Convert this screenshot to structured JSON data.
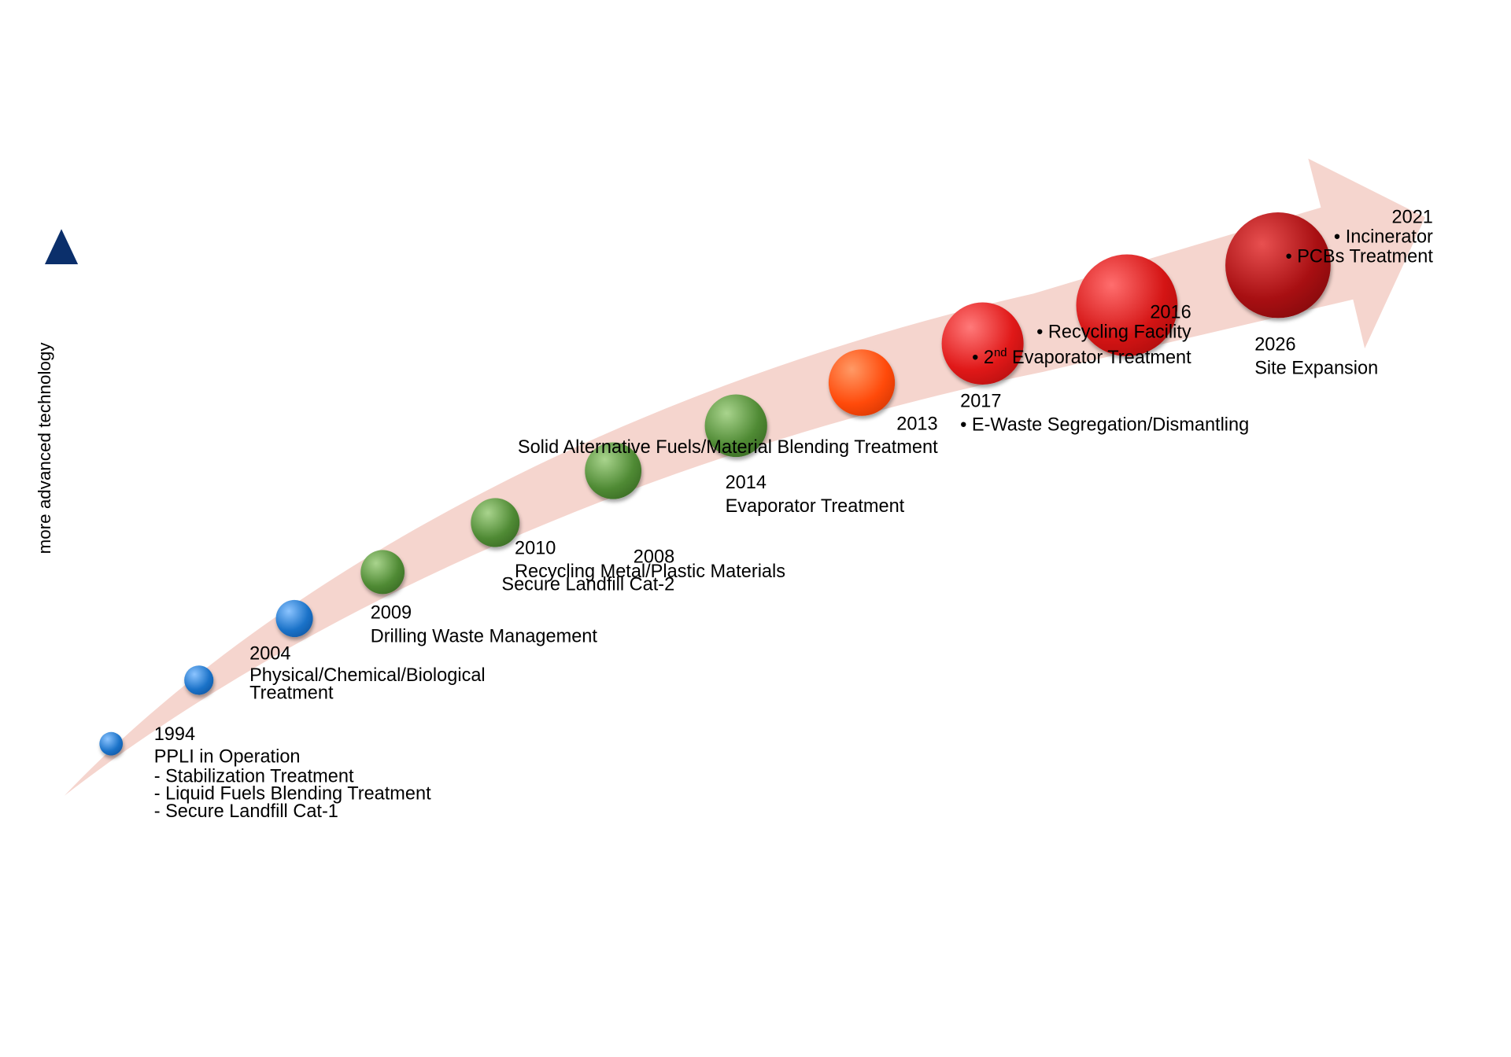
{
  "axis_label": "more advanced technology",
  "colors": {
    "band": "#f5d5ce",
    "arrow": "#0b2f6b",
    "blue": "#1a72c8",
    "green": "#4f8a34",
    "orange": "#ff4a0a",
    "red": "#e01818",
    "dark_red": "#a80f12"
  },
  "milestones": [
    {
      "year": "1994",
      "title": "PPLI in Operation",
      "items": [
        "- Stabilization Treatment",
        "- Liquid Fuels Blending Treatment",
        "- Secure Landfill Cat-1"
      ],
      "color": "blue"
    },
    {
      "year": "2004",
      "title": "Physical/Chemical/Biological",
      "items": [
        "Treatment"
      ],
      "color": "blue"
    },
    {
      "year": "2008",
      "title": "Secure Landfill Cat-2",
      "color": "blue"
    },
    {
      "year": "2009",
      "title": "Drilling Waste Management",
      "color": "green"
    },
    {
      "year": "2010",
      "title": "Recycling Metal/Plastic Materials",
      "color": "green"
    },
    {
      "year": "2013",
      "title": "Solid Alternative Fuels/Material Blending Treatment",
      "color": "green"
    },
    {
      "year": "2014",
      "title": "Evaporator Treatment",
      "color": "green"
    },
    {
      "year": "2016",
      "items": [
        "• Recycling Facility",
        "• 2"
      ],
      "sup": "nd",
      "items_tail": " Evaporator Treatment",
      "color": "orange"
    },
    {
      "year": "2017",
      "items": [
        "• E-Waste Segregation/Dismantling"
      ],
      "color": "red"
    },
    {
      "year": "2021",
      "items": [
        "•  Incinerator",
        "•  PCBs Treatment"
      ],
      "color": "red"
    },
    {
      "year": "2026",
      "title": "Site Expansion",
      "color": "dark_red"
    }
  ]
}
